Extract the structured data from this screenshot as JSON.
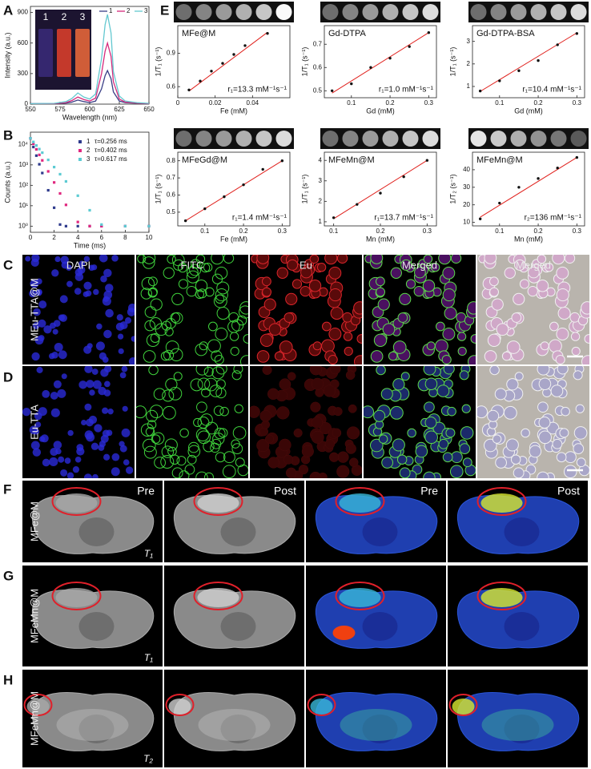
{
  "chart_data": [
    {
      "type": "line",
      "xlabel": "Wavelength (nm)",
      "ylabel": "Intensity (a.u.)",
      "xlim": [
        550,
        650
      ],
      "xticks": [
        550,
        575,
        600,
        625,
        650
      ],
      "ylim": [
        0,
        960
      ],
      "yticks": [
        0,
        300,
        600,
        900
      ],
      "legend": "top-right",
      "inset_labels": [
        "1",
        "2",
        "3"
      ],
      "x": [
        550,
        570,
        580,
        585,
        590,
        595,
        600,
        605,
        610,
        613,
        615,
        618,
        620,
        625,
        630,
        640,
        650
      ],
      "series": [
        {
          "name": "1",
          "color": "#3a3f86",
          "values": [
            5,
            5,
            10,
            20,
            40,
            25,
            15,
            30,
            150,
            280,
            330,
            250,
            120,
            30,
            15,
            8,
            5
          ]
        },
        {
          "name": "2",
          "color": "#d62a7c",
          "values": [
            5,
            5,
            15,
            35,
            70,
            45,
            30,
            60,
            300,
            520,
            600,
            470,
            220,
            50,
            20,
            10,
            5
          ]
        },
        {
          "name": "3",
          "color": "#63c8d0",
          "values": [
            5,
            8,
            25,
            55,
            110,
            70,
            50,
            100,
            450,
            780,
            880,
            700,
            320,
            80,
            30,
            15,
            8
          ]
        }
      ]
    },
    {
      "type": "scatter",
      "xlabel": "Time (ms)",
      "ylabel": "Counts (a.u.)",
      "log_y": true,
      "xlim": [
        0,
        10
      ],
      "xticks": [
        0,
        2,
        4,
        6,
        8,
        10
      ],
      "ylim": [
        0.5,
        40000
      ],
      "yticks": [
        {
          "value": 1,
          "label": "10⁰"
        },
        {
          "value": 10,
          "label": "10¹"
        },
        {
          "value": 100,
          "label": "10²"
        },
        {
          "value": 1000,
          "label": "10³"
        },
        {
          "value": 10000,
          "label": "10⁴"
        }
      ],
      "legend": "top-right",
      "x": [
        0,
        0.25,
        0.5,
        0.75,
        1,
        1.5,
        2,
        2.5,
        3,
        4,
        5,
        6,
        8,
        10
      ],
      "series": [
        {
          "name": "1",
          "tau": "τ=0.256 ms",
          "color": "#2e3a8c",
          "values": [
            20000,
            7500,
            2840,
            1070,
            400,
            57,
            8,
            1.2,
            1,
            1,
            1,
            1,
            1,
            1
          ]
        },
        {
          "name": "2",
          "tau": "τ=0.402 ms",
          "color": "#e0277f",
          "values": [
            20000,
            10700,
            5770,
            3090,
            1660,
            480,
            138,
            40,
            11,
            1.6,
            1,
            1,
            1,
            1
          ]
        },
        {
          "name": "3",
          "tau": "τ=0.617 ms",
          "color": "#5ccbd3",
          "values": [
            20000,
            13300,
            8900,
            5930,
            3960,
            1760,
            780,
            350,
            155,
            31,
            6,
            1.2,
            1,
            1
          ]
        }
      ]
    },
    {
      "type": "scatter",
      "title": "MFe@M",
      "xlabel": "Fe (mM)",
      "ylabel": "1/T₁ (s⁻¹)",
      "annotation": "r₁=13.3 mM⁻¹s⁻¹",
      "xlim": [
        0,
        0.06
      ],
      "xticks": [
        0,
        0.02,
        0.04
      ],
      "ylim": [
        0.5,
        1.15
      ],
      "yticks": [
        0.6,
        0.9
      ],
      "color": "#111111",
      "x": [
        0.006,
        0.012,
        0.018,
        0.024,
        0.03,
        0.036,
        0.048
      ],
      "values": [
        0.57,
        0.65,
        0.74,
        0.81,
        0.89,
        0.97,
        1.08
      ],
      "fit": {
        "color": "#e0201c",
        "x": [
          0.006,
          0.048
        ],
        "values": [
          0.56,
          1.09
        ]
      }
    },
    {
      "type": "scatter",
      "title": "Gd-DTPA",
      "xlabel": "Gd (mM)",
      "ylabel": "1/T₁ (s⁻¹)",
      "annotation": "r₁=1.0 mM⁻¹s⁻¹",
      "xlim": [
        0.03,
        0.32
      ],
      "xticks": [
        0.1,
        0.2,
        0.3
      ],
      "ylim": [
        0.47,
        0.78
      ],
      "yticks": [
        0.5,
        0.6,
        0.7
      ],
      "color": "#111111",
      "x": [
        0.05,
        0.1,
        0.15,
        0.2,
        0.25,
        0.3
      ],
      "values": [
        0.5,
        0.53,
        0.6,
        0.64,
        0.69,
        0.75
      ],
      "fit": {
        "color": "#e0201c",
        "x": [
          0.05,
          0.3
        ],
        "values": [
          0.49,
          0.75
        ]
      }
    },
    {
      "type": "scatter",
      "title": "Gd-DTPA-BSA",
      "xlabel": "Gd (mM)",
      "ylabel": "1/T₁ (s⁻¹)",
      "annotation": "r₁=10.4 mM⁻¹s⁻¹",
      "xlim": [
        0.03,
        0.32
      ],
      "xticks": [
        0.1,
        0.2,
        0.3
      ],
      "ylim": [
        0.5,
        3.7
      ],
      "yticks": [
        1,
        2,
        3
      ],
      "color": "#111111",
      "x": [
        0.05,
        0.1,
        0.15,
        0.2,
        0.25,
        0.3
      ],
      "values": [
        0.8,
        1.25,
        1.7,
        2.15,
        2.85,
        3.35
      ],
      "fit": {
        "color": "#e0201c",
        "x": [
          0.05,
          0.3
        ],
        "values": [
          0.78,
          3.38
        ]
      }
    },
    {
      "type": "scatter",
      "title": "MFeGd@M",
      "xlabel": "Fe (mM)",
      "ylabel": "1/T₁ (s⁻¹)",
      "annotation": "r₁=1.4 mM⁻¹s⁻¹",
      "xlim": [
        0.03,
        0.32
      ],
      "xticks": [
        0.1,
        0.2,
        0.3
      ],
      "ylim": [
        0.42,
        0.85
      ],
      "yticks": [
        0.5,
        0.6,
        0.7,
        0.8
      ],
      "color": "#111111",
      "x": [
        0.05,
        0.1,
        0.15,
        0.2,
        0.25,
        0.3
      ],
      "values": [
        0.45,
        0.52,
        0.59,
        0.66,
        0.75,
        0.8
      ],
      "fit": {
        "color": "#e0201c",
        "x": [
          0.05,
          0.3
        ],
        "values": [
          0.45,
          0.8
        ]
      }
    },
    {
      "type": "scatter",
      "title": "MFeMn@M",
      "xlabel": "Mn (mM)",
      "ylabel": "1/T₁ (s⁻¹)",
      "annotation": "r₁=13.7 mM⁻¹s⁻¹",
      "xlim": [
        0.08,
        0.32
      ],
      "xticks": [
        0.1,
        0.2,
        0.3
      ],
      "ylim": [
        0.8,
        4.4
      ],
      "yticks": [
        1,
        2,
        3,
        4
      ],
      "color": "#111111",
      "x": [
        0.1,
        0.15,
        0.2,
        0.25,
        0.3
      ],
      "values": [
        1.2,
        1.85,
        2.4,
        3.2,
        4.0
      ],
      "fit": {
        "color": "#e0201c",
        "x": [
          0.1,
          0.3
        ],
        "values": [
          1.15,
          4.0
        ]
      }
    },
    {
      "type": "scatter",
      "title": "MFeMn@M",
      "xlabel": "Mn (mM)",
      "ylabel": "1/T₂ (s⁻¹)",
      "annotation": "r₂=136 mM⁻¹s⁻¹",
      "xlim": [
        0.03,
        0.32
      ],
      "xticks": [
        0.1,
        0.2,
        0.3
      ],
      "ylim": [
        8,
        50
      ],
      "yticks": [
        10,
        20,
        30,
        40
      ],
      "color": "#111111",
      "x": [
        0.05,
        0.1,
        0.15,
        0.2,
        0.25,
        0.3
      ],
      "values": [
        12,
        21,
        30,
        35,
        41,
        47
      ],
      "fit": {
        "color": "#e0201c",
        "x": [
          0.05,
          0.3
        ],
        "values": [
          13,
          47
        ]
      }
    }
  ],
  "panel_labels": [
    "A",
    "B",
    "E",
    "C",
    "D",
    "F",
    "G",
    "H"
  ],
  "microscopy": {
    "channels": [
      "DAPI",
      "FITC",
      "Eu",
      "Merged",
      "Merged"
    ],
    "rows": [
      "MEu-TTA@M",
      "Eu-TTA"
    ]
  },
  "mri": {
    "columns": [
      "Pre",
      "Post",
      "Pre",
      "Post"
    ],
    "rows": [
      {
        "name": "MFe@M",
        "weighting": "T₁"
      },
      {
        "name": "MFeMn@M",
        "weighting": "T₁"
      },
      {
        "name": "MFeMn@M",
        "weighting": "T₂"
      }
    ]
  }
}
